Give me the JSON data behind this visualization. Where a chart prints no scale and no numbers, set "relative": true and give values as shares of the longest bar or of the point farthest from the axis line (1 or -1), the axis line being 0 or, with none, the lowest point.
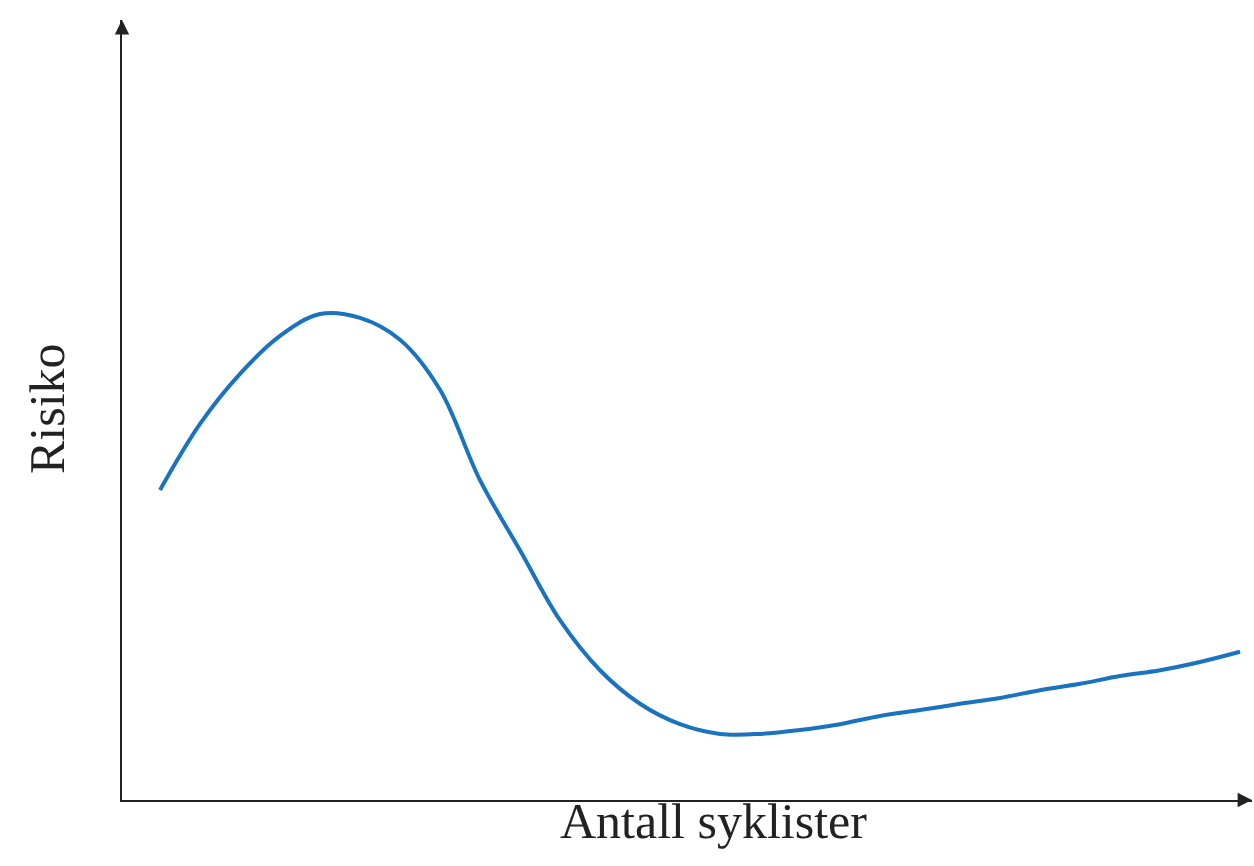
{
  "chart_data": {
    "type": "line",
    "relative": true,
    "xlabel": "Antall syklister",
    "ylabel": "Risiko",
    "categories": [
      null,
      null,
      null,
      null,
      null,
      null,
      null,
      null,
      null,
      null,
      null,
      null,
      null,
      null,
      null,
      null,
      null,
      null,
      null,
      null,
      null,
      null,
      null,
      null,
      null,
      null,
      null,
      null
    ],
    "series": [
      {
        "color": "#1a73bf",
        "values": [
          0.638,
          0.774,
          0.877,
          0.955,
          1.0,
          0.992,
          0.947,
          0.844,
          0.658,
          0.514,
          0.37,
          0.267,
          0.198,
          0.156,
          0.136,
          0.136,
          0.144,
          0.156,
          0.173,
          0.185,
          0.198,
          0.21,
          0.226,
          0.239,
          0.255,
          0.267,
          0.284,
          0.305
        ]
      }
    ]
  }
}
